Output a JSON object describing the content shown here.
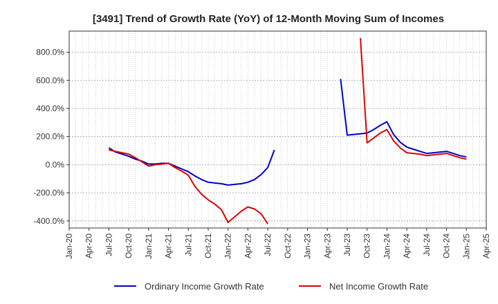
{
  "chart_data": {
    "type": "line",
    "title": "[3491]  Trend of Growth Rate (YoY) of 12-Month Moving Sum of Incomes",
    "ylim": [
      -450,
      950
    ],
    "y_ticks": [
      -400,
      -200,
      0,
      200,
      400,
      600,
      800
    ],
    "y_tick_labels": [
      "-400.0%",
      "-200.0%",
      "0.0%",
      "200.0%",
      "400.0%",
      "600.0%",
      "800.0%"
    ],
    "x_range": [
      "2020-01",
      "2025-04"
    ],
    "x_ticks": [
      "2020-01",
      "2020-04",
      "2020-07",
      "2020-10",
      "2021-01",
      "2021-04",
      "2021-07",
      "2021-10",
      "2022-01",
      "2022-04",
      "2022-07",
      "2022-10",
      "2023-01",
      "2023-04",
      "2023-07",
      "2023-10",
      "2024-01",
      "2024-04",
      "2024-07",
      "2024-10",
      "2025-01",
      "2025-04"
    ],
    "x_tick_labels": [
      "Jan-20",
      "Apr-20",
      "Jul-20",
      "Oct-20",
      "Jan-21",
      "Apr-21",
      "Jul-21",
      "Oct-21",
      "Jan-22",
      "Apr-22",
      "Jul-22",
      "Oct-22",
      "Jan-23",
      "Apr-23",
      "Jul-23",
      "Oct-23",
      "Jan-24",
      "Apr-24",
      "Jul-24",
      "Oct-24",
      "Jan-25",
      "Apr-25"
    ],
    "grid": true,
    "legend_position": "bottom",
    "series": [
      {
        "name": "Ordinary Income Growth Rate",
        "color": "#0000cc",
        "points": [
          [
            "2020-07",
            120
          ],
          [
            "2020-08",
            90
          ],
          [
            "2020-09",
            75
          ],
          [
            "2020-10",
            60
          ],
          [
            "2020-11",
            40
          ],
          [
            "2020-12",
            25
          ],
          [
            "2021-01",
            5
          ],
          [
            "2021-02",
            5
          ],
          [
            "2021-03",
            10
          ],
          [
            "2021-04",
            10
          ],
          [
            "2021-05",
            -10
          ],
          [
            "2021-06",
            -30
          ],
          [
            "2021-07",
            -50
          ],
          [
            "2021-08",
            -80
          ],
          [
            "2021-09",
            -105
          ],
          [
            "2021-10",
            -125
          ],
          [
            "2021-11",
            -130
          ],
          [
            "2021-12",
            -135
          ],
          [
            "2022-01",
            -145
          ],
          [
            "2022-02",
            -140
          ],
          [
            "2022-03",
            -135
          ],
          [
            "2022-04",
            -125
          ],
          [
            "2022-05",
            -105
          ],
          [
            "2022-06",
            -70
          ],
          [
            "2022-07",
            -20
          ],
          [
            "2022-08",
            105
          ],
          null,
          [
            "2023-06",
            610
          ],
          [
            "2023-07",
            210
          ],
          [
            "2023-08",
            215
          ],
          [
            "2023-09",
            220
          ],
          [
            "2023-10",
            225
          ],
          [
            "2023-11",
            250
          ],
          [
            "2023-12",
            280
          ],
          [
            "2024-01",
            305
          ],
          [
            "2024-02",
            215
          ],
          [
            "2024-03",
            160
          ],
          [
            "2024-04",
            125
          ],
          [
            "2024-05",
            110
          ],
          [
            "2024-06",
            95
          ],
          [
            "2024-07",
            80
          ],
          [
            "2024-08",
            85
          ],
          [
            "2024-09",
            90
          ],
          [
            "2024-10",
            95
          ],
          [
            "2024-11",
            80
          ],
          [
            "2024-12",
            65
          ],
          [
            "2025-01",
            55
          ]
        ]
      },
      {
        "name": "Net Income Growth Rate",
        "color": "#dd0000",
        "points": [
          [
            "2020-07",
            105
          ],
          [
            "2020-08",
            95
          ],
          [
            "2020-09",
            85
          ],
          [
            "2020-10",
            75
          ],
          [
            "2020-11",
            50
          ],
          [
            "2020-12",
            20
          ],
          [
            "2021-01",
            -10
          ],
          [
            "2021-02",
            0
          ],
          [
            "2021-03",
            5
          ],
          [
            "2021-04",
            10
          ],
          [
            "2021-05",
            -20
          ],
          [
            "2021-06",
            -45
          ],
          [
            "2021-07",
            -75
          ],
          [
            "2021-08",
            -155
          ],
          [
            "2021-09",
            -210
          ],
          [
            "2021-10",
            -250
          ],
          [
            "2021-11",
            -280
          ],
          [
            "2021-12",
            -320
          ],
          [
            "2022-01",
            -410
          ],
          [
            "2022-02",
            -370
          ],
          [
            "2022-03",
            -330
          ],
          [
            "2022-04",
            -300
          ],
          [
            "2022-05",
            -315
          ],
          [
            "2022-06",
            -350
          ],
          [
            "2022-07",
            -420
          ],
          null,
          [
            "2023-09",
            900
          ],
          [
            "2023-10",
            155
          ],
          [
            "2023-11",
            190
          ],
          [
            "2023-12",
            225
          ],
          [
            "2024-01",
            250
          ],
          [
            "2024-02",
            170
          ],
          [
            "2024-03",
            120
          ],
          [
            "2024-04",
            85
          ],
          [
            "2024-05",
            80
          ],
          [
            "2024-06",
            75
          ],
          [
            "2024-07",
            65
          ],
          [
            "2024-08",
            70
          ],
          [
            "2024-09",
            75
          ],
          [
            "2024-10",
            80
          ],
          [
            "2024-11",
            65
          ],
          [
            "2024-12",
            50
          ],
          [
            "2025-01",
            40
          ]
        ]
      }
    ]
  }
}
